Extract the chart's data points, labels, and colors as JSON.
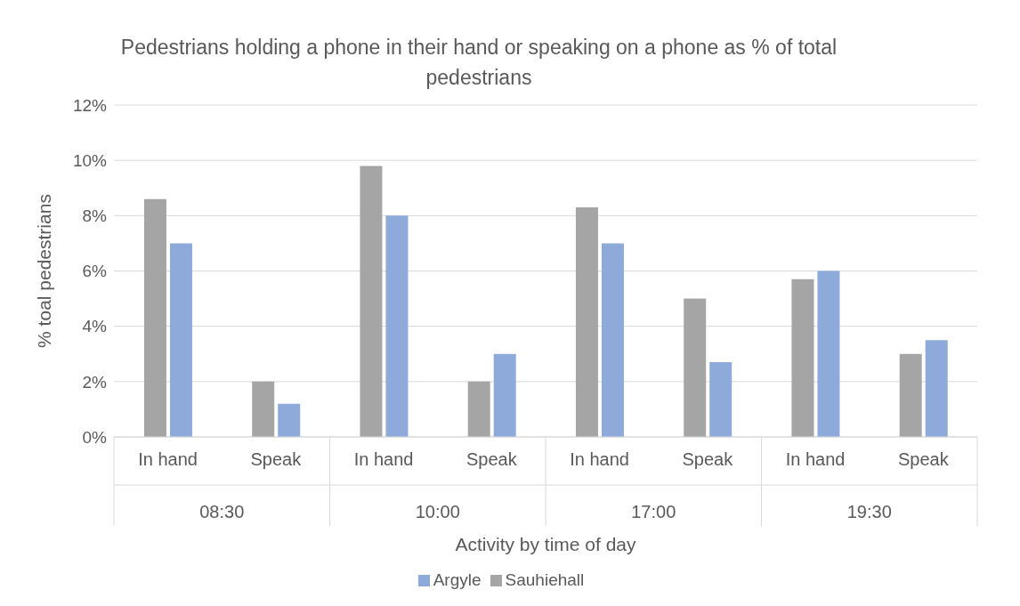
{
  "chart_data": {
    "type": "bar",
    "title": "Pedestrians holding a phone in their hand or speaking on a phone as % of total pedestrians",
    "xlabel": "Activity by time of day",
    "ylabel": "% toal pedestrians",
    "categories": [
      "In hand",
      "Speak",
      "In hand",
      "Speak",
      "In hand",
      "Speak",
      "In hand",
      "Speak"
    ],
    "annotations": [
      "08:30",
      "10:00",
      "17:00",
      "19:30"
    ],
    "series": [
      {
        "name": "Sauhiehall",
        "color": "#a5a5a5",
        "values": [
          8.6,
          2.0,
          9.8,
          2.0,
          8.3,
          5.0,
          5.7,
          3.0
        ]
      },
      {
        "name": "Argyle",
        "color": "#8eaadb",
        "values": [
          7.0,
          1.2,
          8.0,
          3.0,
          7.0,
          2.7,
          6.0,
          3.5
        ]
      }
    ],
    "ylim": [
      0,
      12
    ],
    "yticks": [
      {
        "value": 0,
        "label": "0%"
      },
      {
        "value": 2,
        "label": "2%"
      },
      {
        "value": 4,
        "label": "4%"
      },
      {
        "value": 6,
        "label": "6%"
      },
      {
        "value": 8,
        "label": "8%"
      },
      {
        "value": 10,
        "label": "10%"
      },
      {
        "value": 12,
        "label": "12%"
      }
    ],
    "grid": "y",
    "legend": "bottom"
  }
}
